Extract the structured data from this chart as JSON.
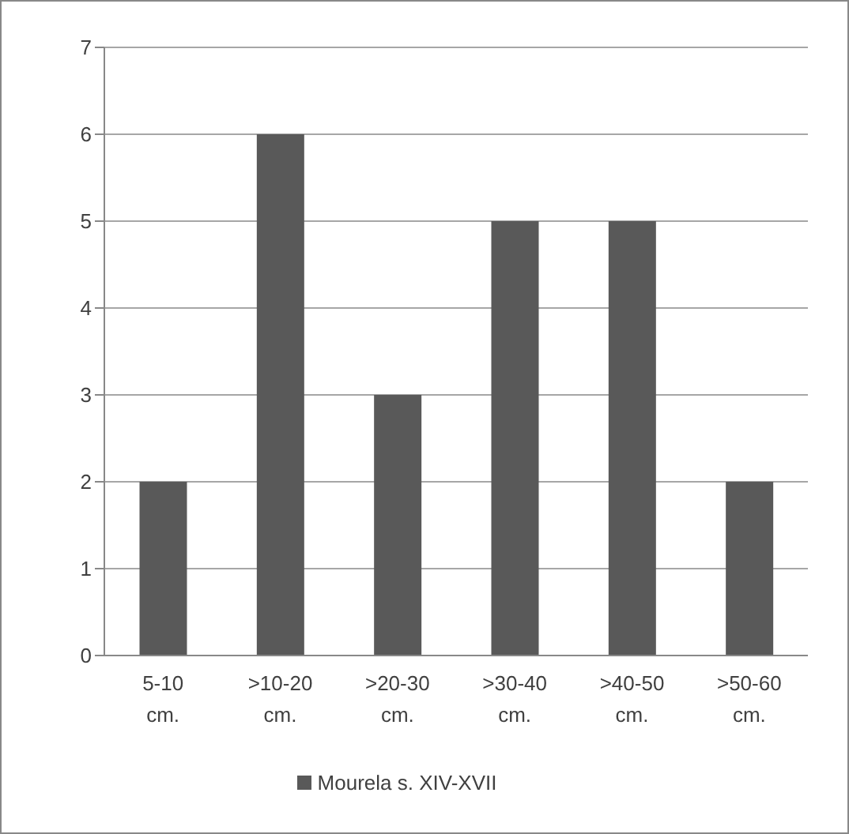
{
  "chart_data": {
    "type": "bar",
    "categories": [
      "5-10 cm.",
      ">10-20 cm.",
      ">20-30 cm.",
      ">30-40 cm.",
      ">40-50 cm.",
      ">50-60 cm."
    ],
    "series": [
      {
        "name": "Mourela s. XIV-XVII",
        "color": "#595959",
        "values": [
          2,
          6,
          3,
          5,
          5,
          2
        ]
      }
    ],
    "ylim": [
      0,
      7
    ],
    "yticks": [
      0,
      1,
      2,
      3,
      4,
      5,
      6,
      7
    ],
    "grid": "y",
    "legend": "bottom"
  }
}
